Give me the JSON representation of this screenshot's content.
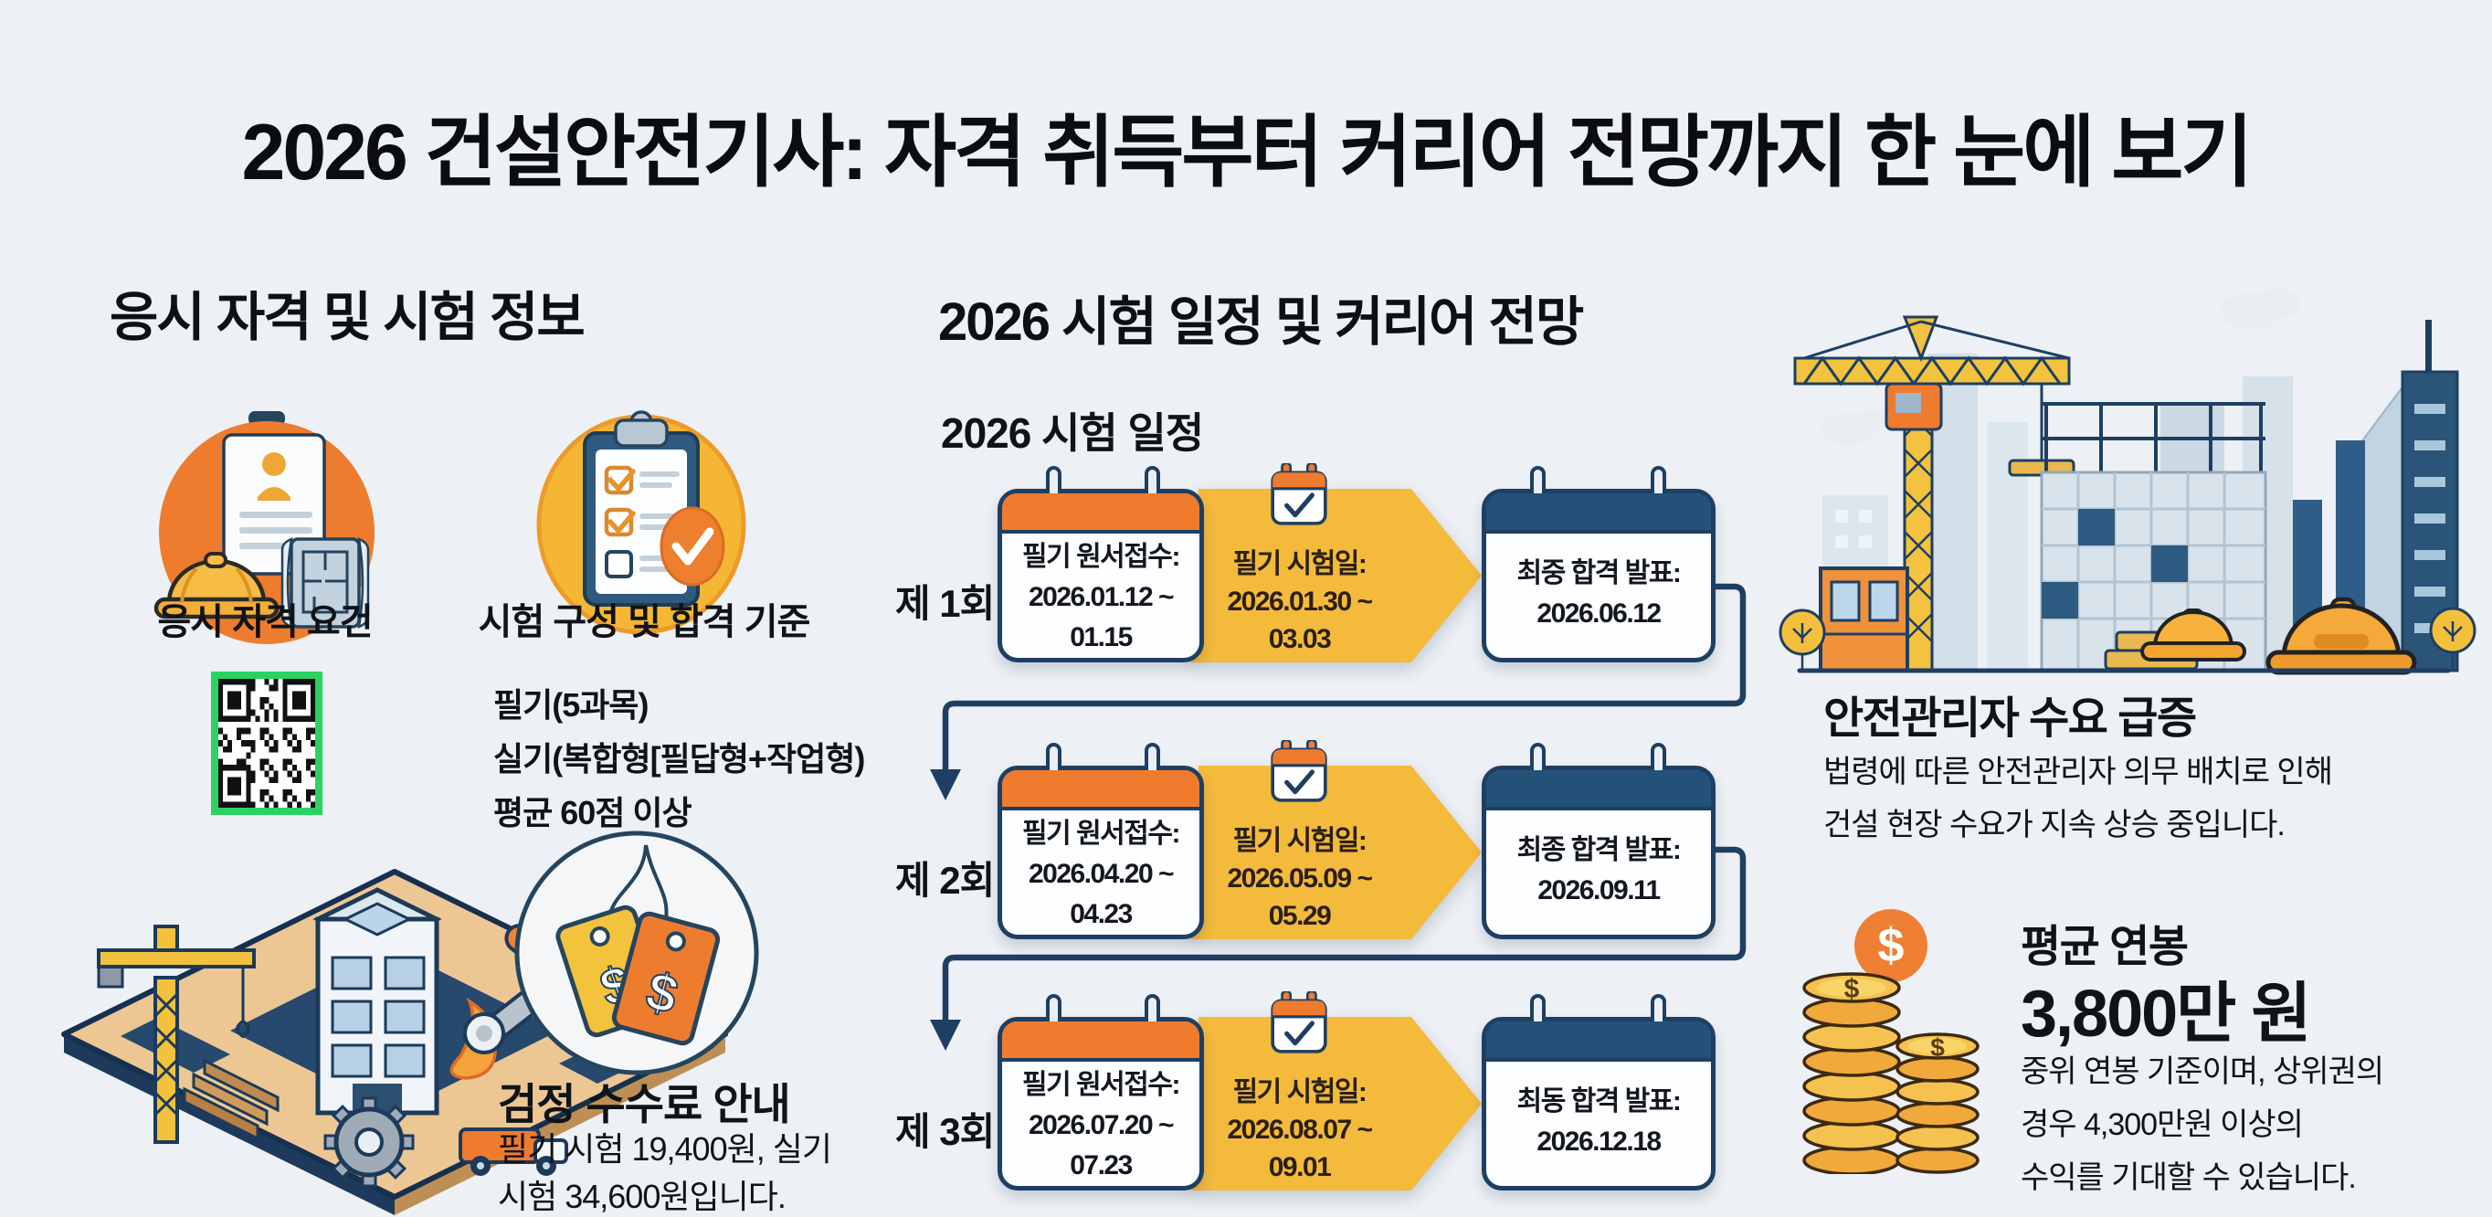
{
  "title": "2026 건설안전기사: 자격 취득부터 커리어 전망까지 한 눈에 보기",
  "left": {
    "header": "응시 자격 및 시험 정보",
    "eligibility": {
      "label": "응시 자격 요건"
    },
    "exam_structure": {
      "label": "시험 구성 및 합격 기준",
      "lines": [
        "필기(5과목)",
        "실기(복합형[필답형+작업형)",
        "평균 60점 이상"
      ]
    },
    "fees": {
      "heading": "검정 수수료 안내",
      "lines": [
        "필기 시험 19,400원, 실기",
        "시험 34,600원입니다."
      ]
    }
  },
  "middle": {
    "header": "2026 시험 일정 및 커리어 전망",
    "subheader": "2026 시험 일정",
    "rounds": [
      {
        "round": "제 1회",
        "application": [
          "필기 원서접수:",
          "2026.01.12 ~",
          "01.15"
        ],
        "exam": [
          "필기 시험일:",
          "2026.01.30 ~",
          "03.03"
        ],
        "result": [
          "최중 합격 발표:",
          "2026.06.12"
        ]
      },
      {
        "round": "제 2회",
        "application": [
          "필기 원서접수:",
          "2026.04.20 ~",
          "04.23"
        ],
        "exam": [
          "필기 시험일:",
          "2026.05.09 ~",
          "05.29"
        ],
        "result": [
          "최종 합격 발표:",
          "2026.09.11"
        ]
      },
      {
        "round": "제 3회",
        "application": [
          "필기 원서접수:",
          "2026.07.20 ~",
          "07.23"
        ],
        "exam": [
          "필기 시험일:",
          "2026.08.07 ~",
          "09.01"
        ],
        "result": [
          "최동 합격 발표:",
          "2026.12.18"
        ]
      }
    ]
  },
  "right": {
    "demand": {
      "heading": "안전관리자 수요 급증",
      "lines": [
        "법령에 따른 안전관리자 의무 배치로 인해",
        "건설 현장 수요가 지속 상승 중입니다."
      ]
    },
    "salary": {
      "label": "평균 연봉",
      "amount": "3,800만 원",
      "lines": [
        "중위 연봉 기준이며, 상위권의",
        "경우 4,300만원 이상의",
        "수익를 기대할 수 있습니다."
      ]
    }
  },
  "icons": {
    "eligibility": "id-card-helmet-icon",
    "exam_structure": "clipboard-checklist-icon",
    "fees": "price-tags-icon",
    "application_step": "calendar-icon",
    "exam_step": "calendar-check-icon",
    "result_step": "calendar-icon",
    "demand": "construction-city-illustration",
    "salary": "coin-stacks-icon",
    "site": "construction-site-illustration",
    "qr": "qr-code"
  },
  "colors": {
    "background": "#edf0f4",
    "orange": "#ee7b2e",
    "yellow": "#f4ba3c",
    "navy": "#1e3f63",
    "header_navy": "#235178",
    "qr_border_green": "#2bd263",
    "gold": "#f2b33a"
  }
}
